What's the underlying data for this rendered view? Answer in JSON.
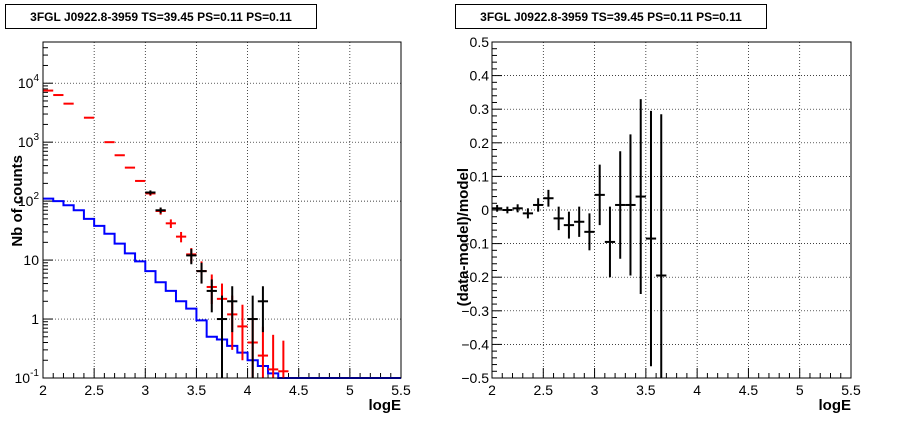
{
  "chart_data": [
    {
      "type": "line",
      "title": "3FGL J0922.8-3959 TS=39.45 PS=0.11 PS=0.11",
      "xlabel": "logE",
      "ylabel": "Nb of counts",
      "xlim": [
        2,
        5.5
      ],
      "ylim": [
        0.1,
        50000
      ],
      "yscale": "log",
      "grid": true,
      "x_ticks": [
        "2",
        "2.5",
        "3",
        "3.5",
        "4",
        "4.5",
        "5",
        "5.5"
      ],
      "y_ticks": [
        {
          "value": 0.1,
          "base": "10",
          "exp": "-1"
        },
        {
          "value": 1,
          "base": "1",
          "exp": ""
        },
        {
          "value": 10,
          "base": "10",
          "exp": ""
        },
        {
          "value": 100,
          "base": "10",
          "exp": "2"
        },
        {
          "value": 1000,
          "base": "10",
          "exp": "3"
        },
        {
          "value": 10000,
          "base": "10",
          "exp": "4"
        }
      ],
      "series": [
        {
          "color": "#ff0000",
          "style": "markers",
          "points": [
            {
              "x": 2.05,
              "y": 7500,
              "xerr": 0.05
            },
            {
              "x": 2.15,
              "y": 6300,
              "xerr": 0.05
            },
            {
              "x": 2.25,
              "y": 4500,
              "xerr": 0.05
            },
            {
              "x": 2.45,
              "y": 2600,
              "xerr": 0.05
            },
            {
              "x": 2.65,
              "y": 1000,
              "xerr": 0.05
            },
            {
              "x": 2.75,
              "y": 600,
              "xerr": 0.05
            },
            {
              "x": 2.85,
              "y": 370,
              "xerr": 0.05
            },
            {
              "x": 2.95,
              "y": 220,
              "xerr": 0.05
            },
            {
              "x": 3.05,
              "y": 135,
              "xerr": 0.05,
              "yerr": [
                12,
                12
              ]
            },
            {
              "x": 3.15,
              "y": 68,
              "xerr": 0.05,
              "yerr": [
                9,
                9
              ]
            },
            {
              "x": 3.25,
              "y": 42,
              "xerr": 0.05,
              "yerr": [
                7,
                7
              ]
            },
            {
              "x": 3.35,
              "y": 25,
              "xerr": 0.05,
              "yerr": [
                5,
                5
              ]
            },
            {
              "x": 3.45,
              "y": 12.5,
              "xerr": 0.05,
              "yerr": [
                3.5,
                3.5
              ]
            },
            {
              "x": 3.55,
              "y": 6.5,
              "xerr": 0.05,
              "yerr": [
                2.5,
                3
              ]
            },
            {
              "x": 3.65,
              "y": 3.5,
              "xerr": 0.05,
              "yerr": [
                1.7,
                2.2
              ]
            },
            {
              "x": 3.75,
              "y": 2.2,
              "xerr": 0.05,
              "yerr": [
                1.3,
                1.8
              ]
            },
            {
              "x": 3.85,
              "y": 1.2,
              "xerr": 0.05,
              "yerr": [
                0.9,
                1.3
              ]
            },
            {
              "x": 3.95,
              "y": 0.75,
              "xerr": 0.05,
              "yerr": [
                0.55,
                1.0
              ]
            },
            {
              "x": 4.05,
              "y": 0.4,
              "xerr": 0.05,
              "yerr": [
                0.3,
                0.65
              ]
            },
            {
              "x": 4.15,
              "y": 0.24,
              "xerr": 0.05,
              "yerr": [
                0.14,
                0.5
              ]
            },
            {
              "x": 4.25,
              "y": 0.14,
              "xerr": 0.05,
              "yerr": [
                0.04,
                0.4
              ]
            },
            {
              "x": 4.35,
              "y": 0.13,
              "xerr": 0.05,
              "yerr": [
                0.03,
                0.3
              ]
            }
          ]
        },
        {
          "color": "#000000",
          "style": "markers",
          "points": [
            {
              "x": 3.05,
              "y": 140,
              "xerr": 0.05,
              "yerr": [
                12,
                12
              ]
            },
            {
              "x": 3.15,
              "y": 70,
              "xerr": 0.05,
              "yerr": [
                8,
                8
              ]
            },
            {
              "x": 3.45,
              "y": 12,
              "xerr": 0.05,
              "yerr": [
                3.5,
                3.5
              ]
            },
            {
              "x": 3.55,
              "y": 6.5,
              "xerr": 0.05,
              "yerr": [
                2.5,
                2.5
              ]
            },
            {
              "x": 3.65,
              "y": 3,
              "xerr": 0.05,
              "yerr": [
                1.7,
                1.7
              ]
            },
            {
              "x": 3.75,
              "y": 1,
              "xerr": 0.05,
              "yerr": [
                0.9,
                1.5
              ]
            },
            {
              "x": 3.85,
              "y": 2,
              "xerr": 0.05,
              "yerr": [
                1.4,
                1.6
              ]
            },
            {
              "x": 4.05,
              "y": 1,
              "xerr": 0.05,
              "yerr": [
                0.9,
                1.5
              ]
            },
            {
              "x": 4.15,
              "y": 2,
              "xerr": 0.05,
              "yerr": [
                1.4,
                1.6
              ]
            }
          ]
        },
        {
          "color": "#0000ff",
          "style": "step",
          "edges": [
            2.0,
            2.1,
            2.2,
            2.3,
            2.4,
            2.5,
            2.6,
            2.7,
            2.8,
            2.9,
            3.0,
            3.1,
            3.2,
            3.3,
            3.4,
            3.5,
            3.6,
            3.7,
            3.8,
            3.9,
            4.0,
            4.1,
            4.2,
            4.3,
            4.4,
            4.5,
            4.6,
            4.7,
            4.8,
            4.9,
            5.0,
            5.1,
            5.2,
            5.3,
            5.4,
            5.5
          ],
          "values": [
            110,
            100,
            85,
            70,
            50,
            38,
            28,
            19,
            13,
            9.5,
            6.5,
            4.2,
            3.0,
            2.0,
            1.5,
            0.95,
            0.5,
            0.45,
            0.35,
            0.27,
            0.2,
            0.16,
            0.12,
            0.1,
            0.1,
            0.1,
            0.1,
            0.1,
            0.1,
            0.1,
            0.1,
            0.1,
            0.1,
            0.1,
            0.1
          ]
        }
      ]
    },
    {
      "type": "scatter",
      "title": "3FGL J0922.8-3959 TS=39.45 PS=0.11 PS=0.11",
      "xlabel": "logE",
      "ylabel": "(data-model)/model",
      "xlim": [
        2,
        5.5
      ],
      "ylim": [
        -0.5,
        0.5
      ],
      "grid": true,
      "x_ticks": [
        "2",
        "2.5",
        "3",
        "3.5",
        "4",
        "4.5",
        "5",
        "5.5"
      ],
      "y_ticks": [
        "0.5",
        "0.4",
        "0.3",
        "0.2",
        "0.1",
        "0",
        "−0.1",
        "−0.2",
        "−0.3",
        "−0.4",
        "−0.5"
      ],
      "series": [
        {
          "color": "#000000",
          "points": [
            {
              "x": 2.05,
              "y": 0.005,
              "xerr": 0.05,
              "yerr": 0.01
            },
            {
              "x": 2.15,
              "y": 0.0,
              "xerr": 0.05,
              "yerr": 0.01
            },
            {
              "x": 2.25,
              "y": 0.005,
              "xerr": 0.05,
              "yerr": 0.012
            },
            {
              "x": 2.35,
              "y": -0.01,
              "xerr": 0.05,
              "yerr": 0.015
            },
            {
              "x": 2.45,
              "y": 0.015,
              "xerr": 0.05,
              "yerr": 0.02
            },
            {
              "x": 2.55,
              "y": 0.035,
              "xerr": 0.05,
              "yerr": 0.025
            },
            {
              "x": 2.65,
              "y": -0.025,
              "xerr": 0.05,
              "yerr": 0.035
            },
            {
              "x": 2.75,
              "y": -0.045,
              "xerr": 0.05,
              "yerr": 0.04
            },
            {
              "x": 2.85,
              "y": -0.035,
              "xerr": 0.05,
              "yerr": 0.045
            },
            {
              "x": 2.95,
              "y": -0.065,
              "xerr": 0.05,
              "yerr": 0.055
            },
            {
              "x": 3.05,
              "y": 0.045,
              "xerr": 0.05,
              "yerr": 0.09
            },
            {
              "x": 3.15,
              "y": -0.095,
              "xerr": 0.05,
              "yerr": 0.105
            },
            {
              "x": 3.25,
              "y": 0.015,
              "xerr": 0.05,
              "yerr": 0.16
            },
            {
              "x": 3.35,
              "y": 0.015,
              "xerr": 0.05,
              "yerr": 0.21
            },
            {
              "x": 3.45,
              "y": 0.04,
              "xerr": 0.05,
              "yerr": 0.29
            },
            {
              "x": 3.55,
              "y": -0.085,
              "xerr": 0.05,
              "yerr": 0.38
            },
            {
              "x": 3.65,
              "y": -0.195,
              "xerr": 0.05,
              "yerr": 0.48
            }
          ]
        }
      ]
    }
  ]
}
